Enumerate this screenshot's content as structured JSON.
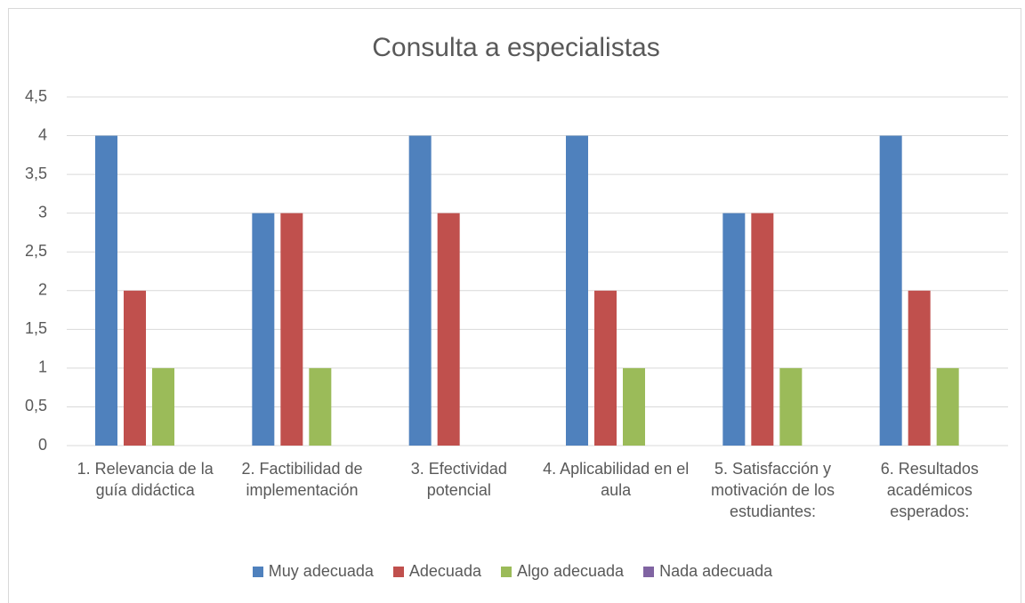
{
  "chart_data": {
    "type": "bar",
    "title": "Consulta a especialistas",
    "categories": [
      "1. Relevancia de la guía didáctica",
      "2. Factibilidad de implementación",
      "3. Efectividad potencial",
      "4. Aplicabilidad en el aula",
      "5. Satisfacción y motivación de los estudiantes:",
      "6. Resultados académicos esperados:"
    ],
    "series": [
      {
        "name": "Muy adecuada",
        "color": "#4f81bd",
        "values": [
          4,
          3,
          4,
          4,
          3,
          4
        ]
      },
      {
        "name": "Adecuada",
        "color": "#c0504d",
        "values": [
          2,
          3,
          3,
          2,
          3,
          2
        ]
      },
      {
        "name": "Algo adecuada",
        "color": "#9bbb59",
        "values": [
          1,
          1,
          0,
          1,
          1,
          1
        ]
      },
      {
        "name": "Nada adecuada",
        "color": "#8064a2",
        "values": [
          0,
          0,
          0,
          0,
          0,
          0
        ]
      }
    ],
    "ylim": [
      0,
      4.5
    ],
    "yticks": [
      0,
      {
        "value": 0.5,
        "label": "0,5"
      },
      1,
      {
        "value": 1.5,
        "label": "1,5"
      },
      2,
      {
        "value": 2.5,
        "label": "2,5"
      },
      3,
      {
        "value": 3.5,
        "label": "3,5"
      },
      4,
      {
        "value": 4.5,
        "label": "4,5"
      }
    ],
    "grid": true,
    "legend": "bottom"
  }
}
